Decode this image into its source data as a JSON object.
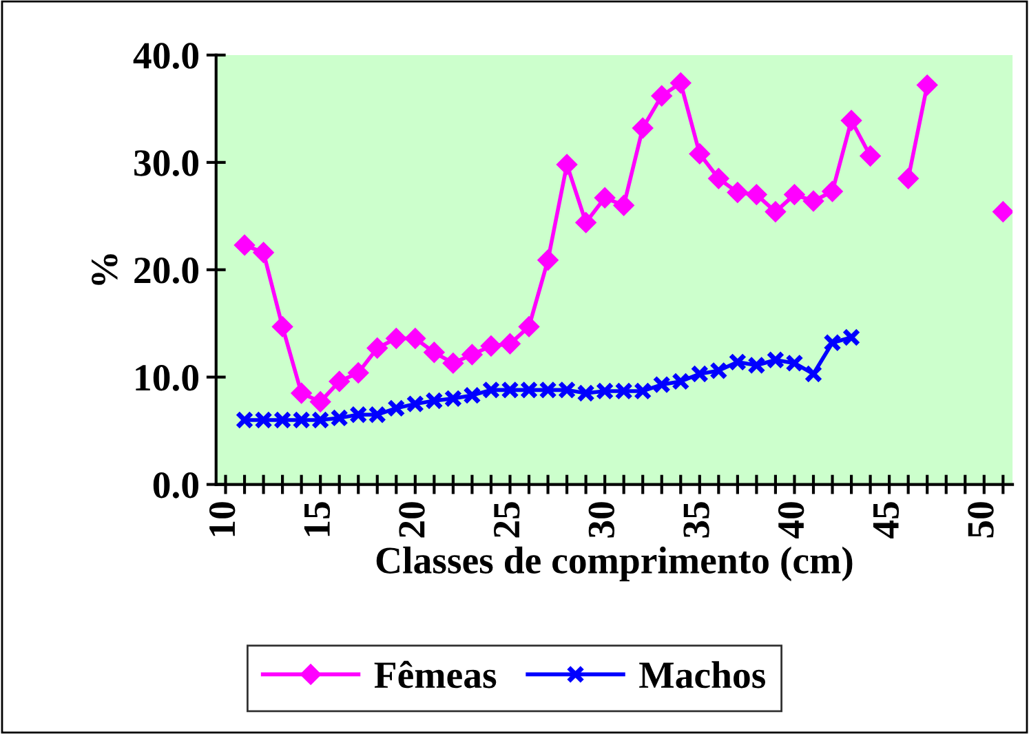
{
  "chart_data": {
    "type": "line",
    "xlabel": "Classes de comprimento (cm)",
    "ylabel": "%",
    "x": [
      11,
      12,
      13,
      14,
      15,
      16,
      17,
      18,
      19,
      20,
      21,
      22,
      23,
      24,
      25,
      26,
      27,
      28,
      29,
      30,
      31,
      32,
      33,
      34,
      35,
      36,
      37,
      38,
      39,
      40,
      41,
      42,
      43,
      44,
      45,
      46,
      47,
      48,
      49,
      50,
      51
    ],
    "series": [
      {
        "name": "Fêmeas",
        "color": "#ff00ff",
        "marker": "diamond",
        "values": [
          22.3,
          21.6,
          14.7,
          8.5,
          7.7,
          9.6,
          10.4,
          12.7,
          13.6,
          13.6,
          12.3,
          11.3,
          12.1,
          12.9,
          13.1,
          14.7,
          20.9,
          29.8,
          24.4,
          26.7,
          26.0,
          33.2,
          36.2,
          37.4,
          30.8,
          28.5,
          27.2,
          27.0,
          25.4,
          27.0,
          26.4,
          27.3,
          33.9,
          30.6,
          null,
          28.5,
          37.2,
          null,
          null,
          null,
          25.4
        ]
      },
      {
        "name": "Machos",
        "color": "#0000ff",
        "marker": "cross",
        "values": [
          6.0,
          6.0,
          6.0,
          6.0,
          6.0,
          6.2,
          6.5,
          6.5,
          7.1,
          7.5,
          7.8,
          8.0,
          8.3,
          8.8,
          8.8,
          8.8,
          8.8,
          8.8,
          8.5,
          8.7,
          8.7,
          8.7,
          9.3,
          9.6,
          10.3,
          10.6,
          11.4,
          11.1,
          11.6,
          11.3,
          10.3,
          13.2,
          13.7,
          null,
          null,
          null,
          null,
          null,
          null,
          null,
          null
        ]
      }
    ],
    "xlim": [
      9.5,
      51.5
    ],
    "xticks": [
      10,
      {
        "value": 11,
        "label": null
      },
      {
        "value": 12,
        "label": null
      },
      {
        "value": 13,
        "label": null
      },
      {
        "value": 14,
        "label": null
      },
      15,
      {
        "value": 16,
        "label": null
      },
      {
        "value": 17,
        "label": null
      },
      {
        "value": 18,
        "label": null
      },
      {
        "value": 19,
        "label": null
      },
      20,
      {
        "value": 21,
        "label": null
      },
      {
        "value": 22,
        "label": null
      },
      {
        "value": 23,
        "label": null
      },
      {
        "value": 24,
        "label": null
      },
      25,
      {
        "value": 26,
        "label": null
      },
      {
        "value": 27,
        "label": null
      },
      {
        "value": 28,
        "label": null
      },
      {
        "value": 29,
        "label": null
      },
      30,
      {
        "value": 31,
        "label": null
      },
      {
        "value": 32,
        "label": null
      },
      {
        "value": 33,
        "label": null
      },
      {
        "value": 34,
        "label": null
      },
      35,
      {
        "value": 36,
        "label": null
      },
      {
        "value": 37,
        "label": null
      },
      {
        "value": 38,
        "label": null
      },
      {
        "value": 39,
        "label": null
      },
      40,
      {
        "value": 41,
        "label": null
      },
      {
        "value": 42,
        "label": null
      },
      {
        "value": 43,
        "label": null
      },
      {
        "value": 44,
        "label": null
      },
      45,
      {
        "value": 46,
        "label": null
      },
      {
        "value": 47,
        "label": null
      },
      {
        "value": 48,
        "label": null
      },
      {
        "value": 49,
        "label": null
      },
      50,
      {
        "value": 51,
        "label": null
      }
    ],
    "ylim": [
      0,
      40
    ],
    "yticks": [
      {
        "value": 0,
        "label": "0.0"
      },
      {
        "value": 10,
        "label": "10.0"
      },
      {
        "value": 20,
        "label": "20.0"
      },
      {
        "value": 30,
        "label": "30.0"
      },
      {
        "value": 40,
        "label": "40.0"
      }
    ],
    "grid": false,
    "legend": "bottom",
    "line_style": "solid"
  }
}
